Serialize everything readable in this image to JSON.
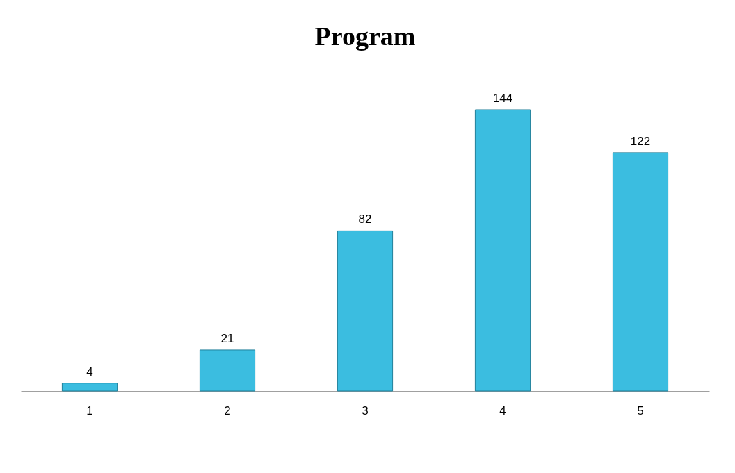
{
  "chart_data": {
    "type": "bar",
    "title": "Program",
    "categories": [
      "1",
      "2",
      "3",
      "4",
      "5"
    ],
    "values": [
      4,
      21,
      82,
      144,
      122
    ],
    "color": "#3bbde0",
    "data_labels": true
  }
}
